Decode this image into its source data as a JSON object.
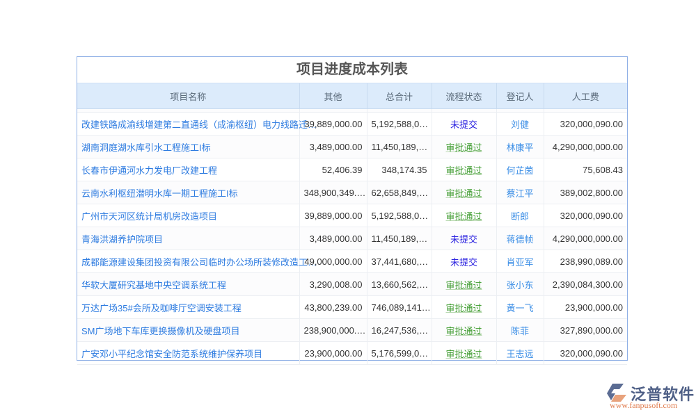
{
  "title": "项目进度成本列表",
  "columns": [
    "项目名称",
    "其他",
    "总合计",
    "流程状态",
    "登记人",
    "人工费"
  ],
  "status_colors": {
    "未提交": "#2b22e0",
    "审批通过": "#3c9a2c"
  },
  "rows": [
    {
      "name": "改建铁路成渝线增建第二直通线（成渝枢纽）电力线路迁…",
      "other": "39,889,000.00",
      "total": "5,192,588,0…",
      "status": "未提交",
      "person": "刘健",
      "labor": "320,000,090.00"
    },
    {
      "name": "湖南洞庭湖水库引水工程施工I标",
      "other": "3,489,000.00",
      "total": "11,450,189,…",
      "status": "审批通过",
      "person": "林康平",
      "labor": "4,290,000,000.00"
    },
    {
      "name": "长春市伊通河水力发电厂改建工程",
      "other": "52,406.39",
      "total": "348,174.35",
      "status": "审批通过",
      "person": "何芷茵",
      "labor": "75,608.43"
    },
    {
      "name": "云南水利枢纽潜明水库一期工程施工I标",
      "other": "348,900,349.…",
      "total": "62,658,849,…",
      "status": "审批通过",
      "person": "蔡江平",
      "labor": "389,002,800.00"
    },
    {
      "name": "广州市天河区统计局机房改造项目",
      "other": "39,889,000.00",
      "total": "5,192,588,0…",
      "status": "审批通过",
      "person": "断郎",
      "labor": "320,000,090.00"
    },
    {
      "name": "青海洪湖养护院项目",
      "other": "3,489,000.00",
      "total": "11,450,189,…",
      "status": "未提交",
      "person": "蒋德帧",
      "labor": "4,290,000,000.00"
    },
    {
      "name": "成都能源建设集团投资有限公司临时办公场所装修改造工…",
      "other": "49,000,000.00",
      "total": "37,441,680,…",
      "status": "未提交",
      "person": "肖亚军",
      "labor": "238,990,089.00"
    },
    {
      "name": "华软大厦研究基地中央空调系统工程",
      "other": "3,290,008.00",
      "total": "13,660,562,…",
      "status": "审批通过",
      "person": "张小东",
      "labor": "2,390,084,300.00"
    },
    {
      "name": "万达广场35#会所及咖啡厅空调安装工程",
      "other": "43,800,239.00",
      "total": "746,089,141…",
      "status": "审批通过",
      "person": "黄一飞",
      "labor": "23,900,000.00"
    },
    {
      "name": "SM广场地下车库更换摄像机及硬盘项目",
      "other": "238,900,000.…",
      "total": "16,247,536,…",
      "status": "审批通过",
      "person": "陈菲",
      "labor": "327,890,000.00"
    },
    {
      "name": "广安邓小平纪念馆安全防范系统维护保养项目",
      "other": "23,900,000.00",
      "total": "5,176,599,0…",
      "status": "审批通过",
      "person": "王志远",
      "labor": "320,000,090.00"
    }
  ],
  "logo": {
    "name": "泛普软件",
    "url": "www.fanpusoft.com"
  }
}
